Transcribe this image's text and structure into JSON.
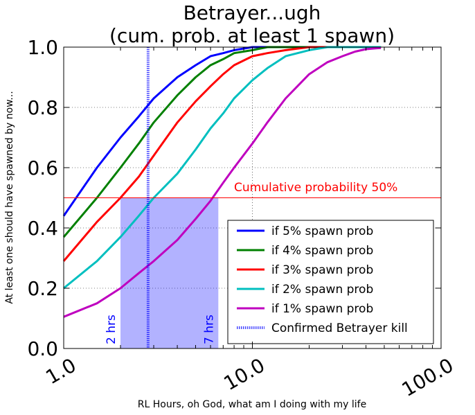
{
  "chart_data": {
    "type": "line",
    "title": [
      "Betrayer...ugh",
      "(cum. prob. at least 1 spawn)"
    ],
    "xlabel": "RL Hours, oh God, what am I doing with my life",
    "ylabel": "At least one should have spawned by now...",
    "xscale": "log",
    "xlim": [
      1.0,
      100.0
    ],
    "ylim": [
      0.0,
      1.0
    ],
    "x_ticks": [
      1.0,
      10.0,
      100.0
    ],
    "x_tick_labels": [
      "1.0",
      "10.0",
      "100.0"
    ],
    "y_ticks": [
      0.0,
      0.2,
      0.4,
      0.6,
      0.8,
      1.0
    ],
    "y_tick_labels": [
      "0.0",
      "0.2",
      "0.4",
      "0.6",
      "0.8",
      "1.0"
    ],
    "grid": true,
    "legend_position": "lower-right",
    "x": [
      1.0,
      1.5,
      2.0,
      2.5,
      3.0,
      4.0,
      5.0,
      6.0,
      7.0,
      8.0,
      10.0,
      12.0,
      15.0,
      20.0,
      25.0,
      30.0,
      35.0,
      40.0,
      45.0,
      48.0
    ],
    "series": [
      {
        "name": "if 5% spawn prob",
        "color": "#0000ff",
        "values": [
          0.44,
          0.6,
          0.7,
          0.77,
          0.83,
          0.9,
          0.94,
          0.97,
          0.98,
          0.99,
          1.0,
          1.0,
          1.0,
          1.0,
          1.0,
          1.0,
          1.0,
          1.0,
          1.0,
          1.0
        ]
      },
      {
        "name": "if 4% spawn prob",
        "color": "#008000",
        "values": [
          0.37,
          0.5,
          0.6,
          0.68,
          0.75,
          0.84,
          0.9,
          0.94,
          0.96,
          0.98,
          0.99,
          1.0,
          1.0,
          1.0,
          1.0,
          1.0,
          1.0,
          1.0,
          1.0,
          1.0
        ]
      },
      {
        "name": "if 3% spawn prob",
        "color": "#ff0000",
        "values": [
          0.29,
          0.42,
          0.5,
          0.57,
          0.64,
          0.75,
          0.82,
          0.87,
          0.91,
          0.94,
          0.97,
          0.98,
          0.99,
          1.0,
          1.0,
          1.0,
          1.0,
          1.0,
          1.0,
          1.0
        ]
      },
      {
        "name": "if 2% spawn prob",
        "color": "#00bfbf",
        "values": [
          0.2,
          0.29,
          0.37,
          0.44,
          0.5,
          0.58,
          0.66,
          0.73,
          0.78,
          0.83,
          0.89,
          0.93,
          0.97,
          0.99,
          1.0,
          1.0,
          1.0,
          1.0,
          1.0,
          1.0
        ]
      },
      {
        "name": "if 1% spawn prob",
        "color": "#bf00bf",
        "values": [
          0.105,
          0.15,
          0.2,
          0.25,
          0.29,
          0.36,
          0.43,
          0.49,
          0.55,
          0.6,
          0.68,
          0.75,
          0.83,
          0.91,
          0.95,
          0.97,
          0.985,
          0.993,
          0.996,
          0.997
        ]
      }
    ],
    "hline": {
      "y": 0.5,
      "label": "Cumulative probability 50%",
      "color": "#ff0000"
    },
    "shaded_region": {
      "x0": 2.0,
      "x1": 6.6,
      "y0": 0.0,
      "y1": 0.5,
      "color": "#0000ff",
      "opacity": 0.3
    },
    "vline": {
      "x": 2.8,
      "label": "Confirmed Betrayer kill",
      "color": "#0000ff"
    },
    "annotations": [
      {
        "text": "2 hrs",
        "x": 2.0,
        "color": "#0000ff"
      },
      {
        "text": "7 hrs",
        "x": 6.6,
        "color": "#0000ff"
      }
    ]
  }
}
